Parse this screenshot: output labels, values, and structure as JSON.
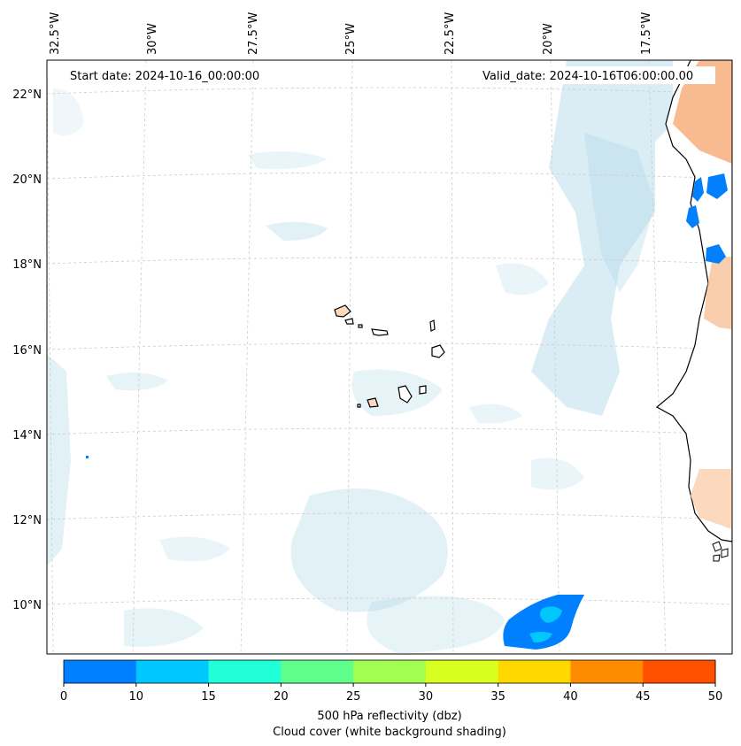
{
  "header": {
    "start_date": "Start date: 2024-10-16_00:00:00",
    "valid_date": "Valid_date: 2024-10-16T06:00:00.00"
  },
  "axes": {
    "lon_labels": [
      "32.5°W",
      "30°W",
      "27.5°W",
      "25°W",
      "22.5°W",
      "20°W",
      "17.5°W"
    ],
    "lat_labels": [
      "22°N",
      "20°N",
      "18°N",
      "16°N",
      "14°N",
      "12°N",
      "10°N"
    ]
  },
  "colorbar": {
    "ticks": [
      "0",
      "10",
      "15",
      "20",
      "25",
      "30",
      "35",
      "40",
      "45",
      "50"
    ],
    "colors": [
      "#0080ff",
      "#00c8ff",
      "#20ffd8",
      "#60ff8c",
      "#a0ff50",
      "#d8ff20",
      "#ffd800",
      "#ff8c00",
      "#ff5000"
    ],
    "label_line1": "500 hPa reflectivity (dbz)",
    "label_line2": "Cloud cover (white background shading)"
  },
  "style": {
    "coast_color": "#000000",
    "land_fill": "#fcd9bd",
    "cloud_color": "#add8e6",
    "grid_color": "#cccccc"
  }
}
